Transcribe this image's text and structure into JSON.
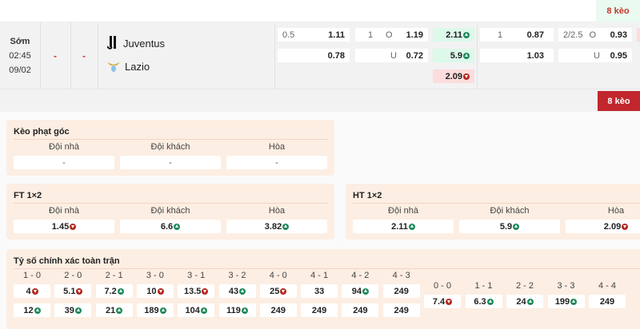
{
  "header": {
    "more_label": "8 kèo"
  },
  "match": {
    "status": "Sớm",
    "time": "02:45",
    "date": "09/02",
    "score_home": "-",
    "score_away": "-",
    "home": {
      "name": "Juventus",
      "icon": "juventus-logo"
    },
    "away": {
      "name": "Lazio",
      "icon": "lazio-logo"
    },
    "odds": {
      "ft_handicap": {
        "line": "0.5",
        "home": "1.11",
        "away": "0.78"
      },
      "ft_ou": {
        "line": "1",
        "over_label": "O",
        "over": "1.19",
        "under_label": "U",
        "under": "0.72"
      },
      "ft_1x2": [
        {
          "v": "2.11",
          "t": "up"
        },
        {
          "v": "5.9",
          "t": "up"
        },
        {
          "v": "2.09",
          "t": "down"
        }
      ],
      "ht_handicap": {
        "line": "1",
        "home": "0.87",
        "away": "1.03"
      },
      "ht_ou": {
        "line": "2/2.5",
        "over_label": "O",
        "over": "0.93",
        "under_label": "U",
        "under": "0.95"
      }
    },
    "more_label": "8 kèo"
  },
  "colors": {
    "up": "#1e8a5a",
    "down": "#b3261e",
    "up_bg": "#dcf9ea",
    "down_bg": "#fcdcdc",
    "accent": "#c1272d"
  },
  "corner": {
    "title": "Kèo phạt góc",
    "labels": [
      "Đội nhà",
      "Đội khách",
      "Hòa"
    ],
    "values": [
      {
        "v": "-",
        "t": ""
      },
      {
        "v": "-",
        "t": ""
      },
      {
        "v": "-",
        "t": ""
      }
    ]
  },
  "ft1x2": {
    "title": "FT 1×2",
    "labels": [
      "Đội nhà",
      "Đội khách",
      "Hòa"
    ],
    "values": [
      {
        "v": "1.45",
        "t": "down"
      },
      {
        "v": "6.6",
        "t": "up"
      },
      {
        "v": "3.82",
        "t": "up"
      }
    ]
  },
  "ht1x2": {
    "title": "HT 1×2",
    "labels": [
      "Đội nhà",
      "Đội khách",
      "Hòa"
    ],
    "values": [
      {
        "v": "2.11",
        "t": "up"
      },
      {
        "v": "5.9",
        "t": "up"
      },
      {
        "v": "2.09",
        "t": "down"
      }
    ]
  },
  "correct_score": {
    "title": "Tỷ số chính xác toàn trận",
    "home_wins": [
      {
        "s": "1 - 0",
        "a": {
          "v": "4",
          "t": "down"
        },
        "b": {
          "v": "12",
          "t": "up"
        }
      },
      {
        "s": "2 - 0",
        "a": {
          "v": "5.1",
          "t": "down"
        },
        "b": {
          "v": "39",
          "t": "up"
        }
      },
      {
        "s": "2 - 1",
        "a": {
          "v": "7.2",
          "t": "up"
        },
        "b": {
          "v": "21",
          "t": "up"
        }
      },
      {
        "s": "3 - 0",
        "a": {
          "v": "10",
          "t": "down"
        },
        "b": {
          "v": "189",
          "t": "up"
        }
      },
      {
        "s": "3 - 1",
        "a": {
          "v": "13.5",
          "t": "down"
        },
        "b": {
          "v": "104",
          "t": "up"
        }
      },
      {
        "s": "3 - 2",
        "a": {
          "v": "43",
          "t": "up"
        },
        "b": {
          "v": "119",
          "t": "up"
        }
      },
      {
        "s": "4 - 0",
        "a": {
          "v": "25",
          "t": "down"
        },
        "b": {
          "v": "249",
          "t": ""
        }
      },
      {
        "s": "4 - 1",
        "a": {
          "v": "33",
          "t": ""
        },
        "b": {
          "v": "249",
          "t": ""
        }
      },
      {
        "s": "4 - 2",
        "a": {
          "v": "94",
          "t": "up"
        },
        "b": {
          "v": "249",
          "t": ""
        }
      },
      {
        "s": "4 - 3",
        "a": {
          "v": "249",
          "t": ""
        },
        "b": {
          "v": "249",
          "t": ""
        }
      }
    ],
    "draws": [
      {
        "s": "0 - 0",
        "a": {
          "v": "7.4",
          "t": "down"
        }
      },
      {
        "s": "1 - 1",
        "a": {
          "v": "6.3",
          "t": "up"
        }
      },
      {
        "s": "2 - 2",
        "a": {
          "v": "24",
          "t": "up"
        }
      },
      {
        "s": "3 - 3",
        "a": {
          "v": "199",
          "t": "up"
        }
      },
      {
        "s": "4 - 4",
        "a": {
          "v": "249",
          "t": ""
        }
      }
    ]
  }
}
